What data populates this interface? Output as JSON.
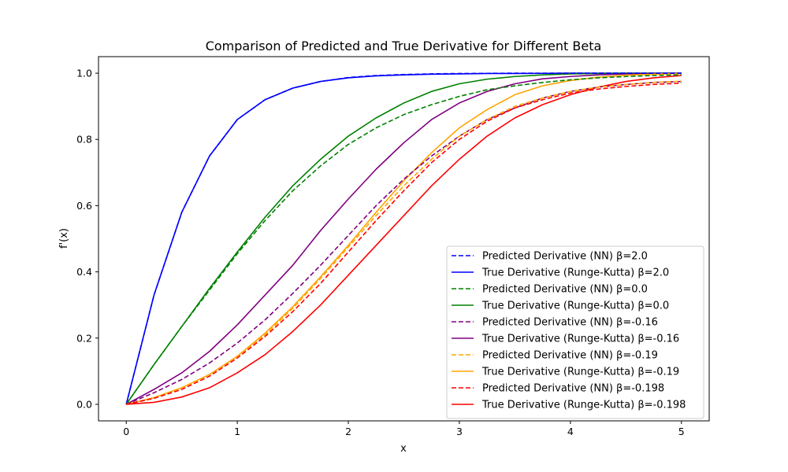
{
  "chart_data": {
    "type": "line",
    "title": "Comparison of Predicted and True Derivative for Different Beta",
    "xlabel": "x",
    "ylabel": "f'(x)",
    "xlim": [
      -0.25,
      5.25
    ],
    "ylim": [
      -0.05,
      1.05
    ],
    "xticks": [
      "0",
      "1",
      "2",
      "3",
      "4",
      "5"
    ],
    "yticks": [
      "0.0",
      "0.2",
      "0.4",
      "0.6",
      "0.8",
      "1.0"
    ],
    "grid": false,
    "legend_position": "lower-right",
    "x": [
      0,
      0.25,
      0.5,
      0.75,
      1.0,
      1.25,
      1.5,
      1.75,
      2.0,
      2.25,
      2.5,
      2.75,
      3.0,
      3.25,
      3.5,
      3.75,
      4.0,
      4.25,
      4.5,
      4.75,
      5.0
    ],
    "series": [
      {
        "name": "Predicted Derivative (NN) β=2.0",
        "color": "#0000ff",
        "style": "dashed",
        "values": [
          0,
          0.33,
          0.58,
          0.75,
          0.86,
          0.92,
          0.955,
          0.975,
          0.987,
          0.993,
          0.996,
          0.998,
          0.999,
          0.9995,
          1.0,
          1.0,
          1.0,
          1.0,
          1.0,
          1.0,
          1.0
        ]
      },
      {
        "name": "True Derivative (Runge-Kutta) β=2.0",
        "color": "#0000ff",
        "style": "solid",
        "values": [
          0,
          0.33,
          0.58,
          0.75,
          0.86,
          0.92,
          0.955,
          0.975,
          0.986,
          0.992,
          0.995,
          0.997,
          0.998,
          0.999,
          0.999,
          0.9995,
          1.0,
          1.0,
          1.0,
          1.0,
          1.0
        ]
      },
      {
        "name": "Predicted Derivative (NN) β=0.0",
        "color": "#008000",
        "style": "dashed",
        "values": [
          0,
          0.12,
          0.235,
          0.345,
          0.455,
          0.555,
          0.645,
          0.72,
          0.785,
          0.835,
          0.875,
          0.905,
          0.93,
          0.95,
          0.962,
          0.972,
          0.98,
          0.986,
          0.99,
          0.993,
          0.995
        ]
      },
      {
        "name": "True Derivative (Runge-Kutta) β=0.0",
        "color": "#008000",
        "style": "solid",
        "values": [
          0,
          0.12,
          0.235,
          0.35,
          0.46,
          0.565,
          0.66,
          0.74,
          0.81,
          0.865,
          0.91,
          0.945,
          0.968,
          0.982,
          0.99,
          0.995,
          0.998,
          0.999,
          1.0,
          1.0,
          1.0
        ]
      },
      {
        "name": "Predicted Derivative (NN) β=-0.16",
        "color": "#800080",
        "style": "dashed",
        "values": [
          0,
          0.035,
          0.075,
          0.125,
          0.185,
          0.255,
          0.335,
          0.42,
          0.51,
          0.6,
          0.68,
          0.75,
          0.81,
          0.86,
          0.895,
          0.925,
          0.945,
          0.958,
          0.966,
          0.972,
          0.975
        ]
      },
      {
        "name": "True Derivative (Runge-Kutta) β=-0.16",
        "color": "#800080",
        "style": "solid",
        "values": [
          0,
          0.045,
          0.095,
          0.16,
          0.24,
          0.33,
          0.42,
          0.525,
          0.62,
          0.71,
          0.79,
          0.86,
          0.91,
          0.945,
          0.968,
          0.983,
          0.99,
          0.995,
          0.998,
          0.999,
          1.0
        ]
      },
      {
        "name": "Predicted Derivative (NN) β=-0.19",
        "color": "#ffa500",
        "style": "dashed",
        "values": [
          0,
          0.02,
          0.05,
          0.09,
          0.145,
          0.21,
          0.29,
          0.38,
          0.475,
          0.57,
          0.66,
          0.74,
          0.81,
          0.86,
          0.9,
          0.925,
          0.945,
          0.958,
          0.966,
          0.972,
          0.976
        ]
      },
      {
        "name": "True Derivative (Runge-Kutta) β=-0.19",
        "color": "#ffa500",
        "style": "solid",
        "values": [
          0,
          0.02,
          0.05,
          0.09,
          0.145,
          0.215,
          0.295,
          0.385,
          0.48,
          0.58,
          0.675,
          0.76,
          0.835,
          0.89,
          0.935,
          0.962,
          0.978,
          0.988,
          0.994,
          0.997,
          0.999
        ]
      },
      {
        "name": "Predicted Derivative (NN) β=-0.198",
        "color": "#ff0000",
        "style": "dashed",
        "values": [
          0,
          0.018,
          0.045,
          0.085,
          0.14,
          0.205,
          0.28,
          0.365,
          0.46,
          0.555,
          0.645,
          0.73,
          0.8,
          0.855,
          0.895,
          0.92,
          0.94,
          0.952,
          0.96,
          0.966,
          0.97
        ]
      },
      {
        "name": "True Derivative (Runge-Kutta) β=-0.198",
        "color": "#ff0000",
        "style": "solid",
        "values": [
          0,
          0.006,
          0.022,
          0.05,
          0.095,
          0.15,
          0.22,
          0.3,
          0.39,
          0.48,
          0.57,
          0.66,
          0.74,
          0.81,
          0.865,
          0.905,
          0.935,
          0.958,
          0.975,
          0.986,
          0.993
        ]
      }
    ]
  }
}
